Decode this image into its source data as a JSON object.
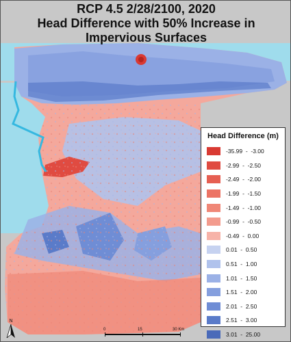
{
  "title": {
    "line1": "RCP 4.5 2/28/2100, 2020",
    "line2": "Head Difference with 50% Increase in",
    "line3": "Impervious Surfaces"
  },
  "legend": {
    "title": "Head Difference (m)",
    "items": [
      {
        "label": "-35.99  -  -3.00",
        "color": "#d93a33"
      },
      {
        "label": "-2.99  -  -2.50",
        "color": "#e04b41"
      },
      {
        "label": "-2.49  -  -2.00",
        "color": "#e65f52"
      },
      {
        "label": "-1.99  -  -1.50",
        "color": "#ec7364"
      },
      {
        "label": "-1.49  -  -1.00",
        "color": "#f08777"
      },
      {
        "label": "-0.99  -  -0.50",
        "color": "#f39b8d"
      },
      {
        "label": "-0.49  -  0.00",
        "color": "#f7b3a8"
      },
      {
        "label": "0.01  -  0.50",
        "color": "#c6d2f0"
      },
      {
        "label": "0.51  -  1.00",
        "color": "#b0c2ec"
      },
      {
        "label": "1.01  -  1.50",
        "color": "#9bb1e6"
      },
      {
        "label": "1.51  -  2.00",
        "color": "#859fde"
      },
      {
        "label": "2.01  -  2.50",
        "color": "#6f8dd5"
      },
      {
        "label": "2.51  -  3.00",
        "color": "#5a7bc9"
      },
      {
        "label": "3.01  -  25.00",
        "color": "#4a6ab9"
      }
    ]
  },
  "north_arrow": {
    "letter": "N",
    "icon": "north-arrow-icon"
  },
  "scale": {
    "labels": [
      "0",
      "15",
      "30 Km"
    ]
  },
  "colors": {
    "background": "#c8c8c8",
    "water": "#9fdcec",
    "river": "#35b8e0"
  }
}
